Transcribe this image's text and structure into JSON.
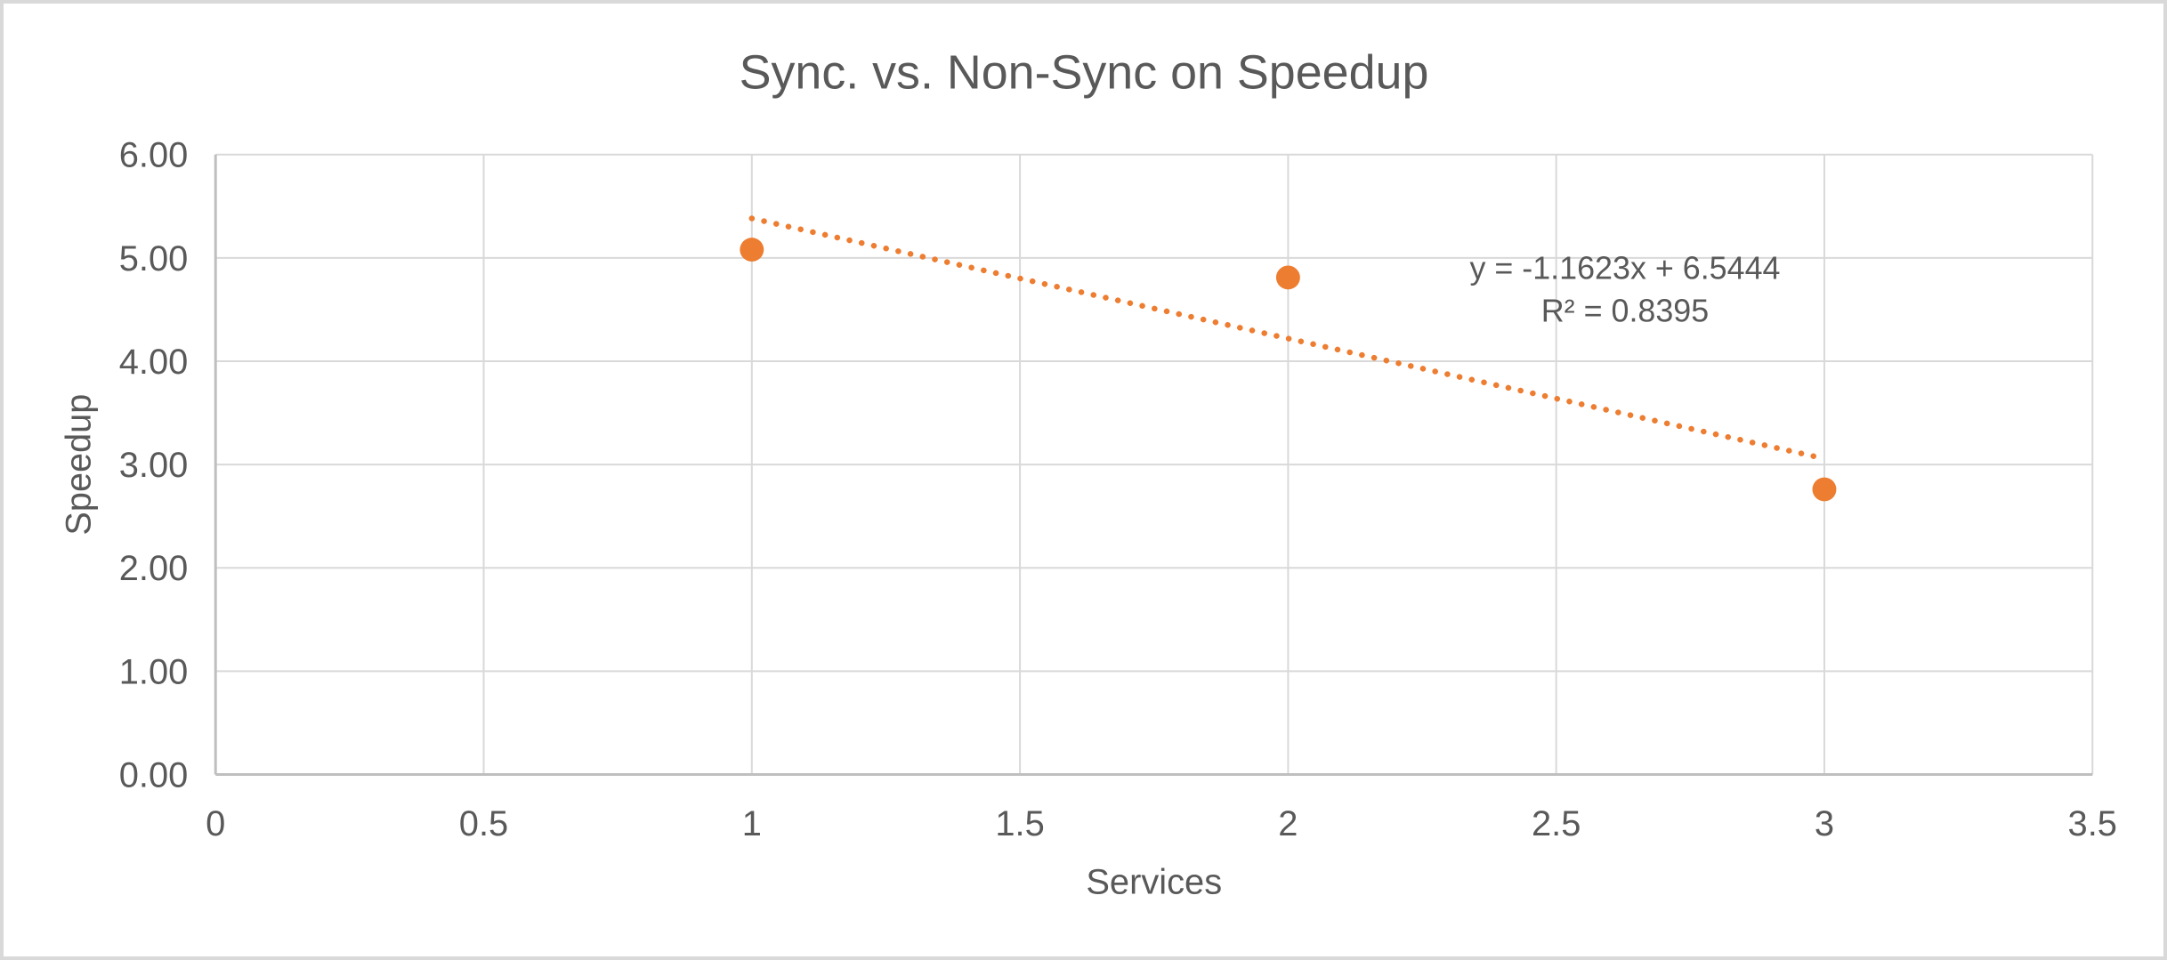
{
  "chart_data": {
    "type": "scatter",
    "title": "Sync. vs. Non-Sync on Speedup",
    "xlabel": "Services",
    "ylabel": "Speedup",
    "xlim": [
      0,
      3.5
    ],
    "ylim": [
      0,
      6
    ],
    "grid": true,
    "legend": "none",
    "x_ticks": [
      {
        "v": 0,
        "label": "0"
      },
      {
        "v": 0.5,
        "label": "0.5"
      },
      {
        "v": 1,
        "label": "1"
      },
      {
        "v": 1.5,
        "label": "1.5"
      },
      {
        "v": 2,
        "label": "2"
      },
      {
        "v": 2.5,
        "label": "2.5"
      },
      {
        "v": 3,
        "label": "3"
      },
      {
        "v": 3.5,
        "label": "3.5"
      }
    ],
    "y_ticks": [
      {
        "v": 0,
        "label": "0.00"
      },
      {
        "v": 1,
        "label": "1.00"
      },
      {
        "v": 2,
        "label": "2.00"
      },
      {
        "v": 3,
        "label": "3.00"
      },
      {
        "v": 4,
        "label": "4.00"
      },
      {
        "v": 5,
        "label": "5.00"
      },
      {
        "v": 6,
        "label": "6.00"
      }
    ],
    "series": [
      {
        "name": "Speedup",
        "marker": "circle",
        "points": [
          {
            "x": 1,
            "y": 5.08
          },
          {
            "x": 2,
            "y": 4.81
          },
          {
            "x": 3,
            "y": 2.76
          }
        ]
      }
    ],
    "trendline": {
      "kind": "linear",
      "style": "dotted",
      "slope": -1.1623,
      "intercept": 6.5444,
      "x_range": [
        1,
        3
      ],
      "equation": "y = -1.1623x + 6.5444",
      "r2": "R² = 0.8395"
    },
    "colors": {
      "series": "#ED7D31",
      "trendline": "#ED7D31",
      "gridline": "#D9D9D9",
      "axis_line": "#BFBFBF",
      "text": "#595959",
      "frame_border": "#D9D9D9",
      "background": "#FFFFFF"
    }
  }
}
